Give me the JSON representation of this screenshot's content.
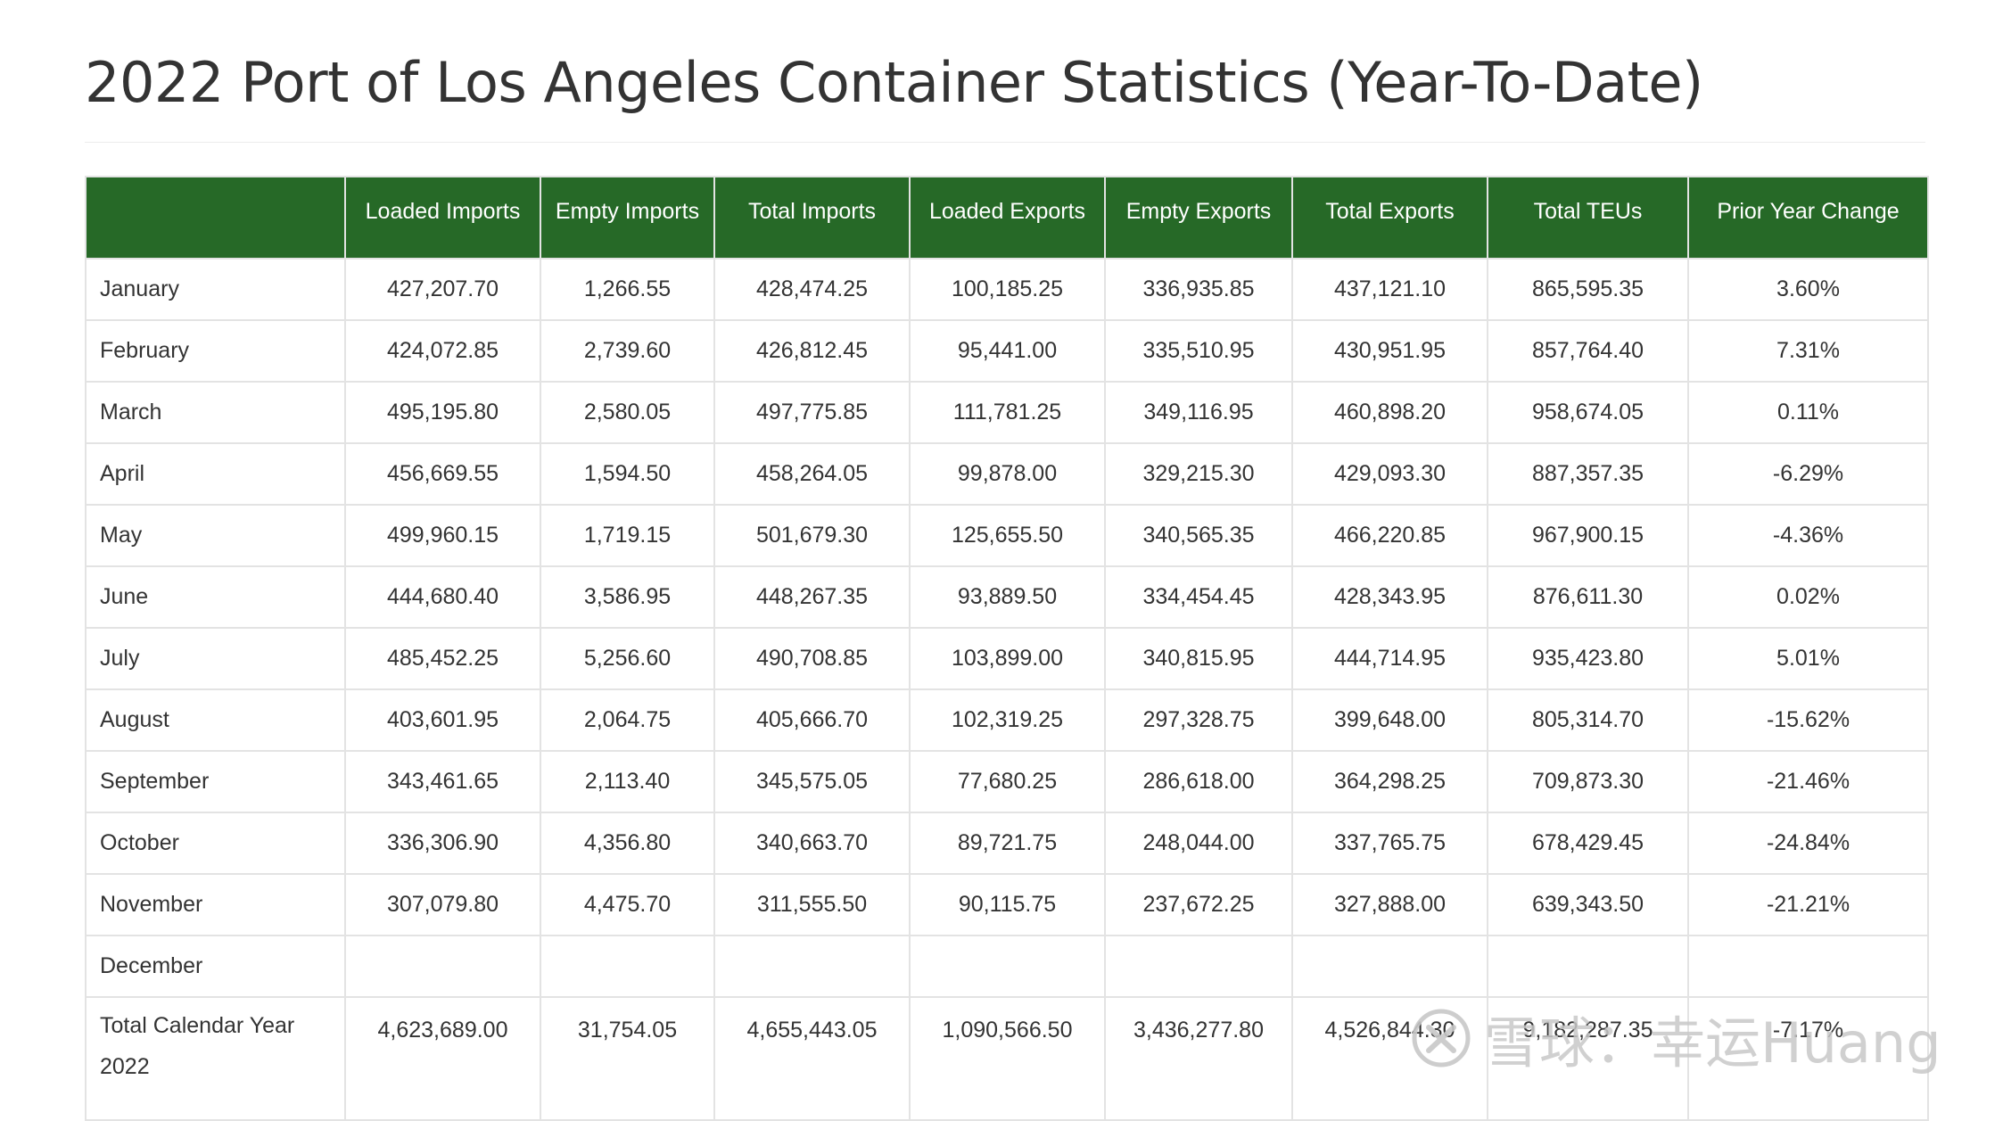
{
  "page": {
    "title": "2022 Port of Los Angeles Container Statistics (Year-To-Date)"
  },
  "table": {
    "headers": [
      "",
      "Loaded Imports",
      "Empty Imports",
      "Total Imports",
      "Loaded Exports",
      "Empty Exports",
      "Total Exports",
      "Total TEUs",
      "Prior Year Change"
    ],
    "rows": [
      [
        "January",
        "427,207.70",
        "1,266.55",
        "428,474.25",
        "100,185.25",
        "336,935.85",
        "437,121.10",
        "865,595.35",
        "3.60%"
      ],
      [
        "February",
        "424,072.85",
        "2,739.60",
        "426,812.45",
        "95,441.00",
        "335,510.95",
        "430,951.95",
        "857,764.40",
        "7.31%"
      ],
      [
        "March",
        "495,195.80",
        "2,580.05",
        "497,775.85",
        "111,781.25",
        "349,116.95",
        "460,898.20",
        "958,674.05",
        "0.11%"
      ],
      [
        "April",
        "456,669.55",
        "1,594.50",
        "458,264.05",
        "99,878.00",
        "329,215.30",
        "429,093.30",
        "887,357.35",
        "-6.29%"
      ],
      [
        "May",
        "499,960.15",
        "1,719.15",
        "501,679.30",
        "125,655.50",
        "340,565.35",
        "466,220.85",
        "967,900.15",
        "-4.36%"
      ],
      [
        "June",
        "444,680.40",
        "3,586.95",
        "448,267.35",
        "93,889.50",
        "334,454.45",
        "428,343.95",
        "876,611.30",
        "0.02%"
      ],
      [
        "July",
        "485,452.25",
        "5,256.60",
        "490,708.85",
        "103,899.00",
        "340,815.95",
        "444,714.95",
        "935,423.80",
        "5.01%"
      ],
      [
        "August",
        "403,601.95",
        "2,064.75",
        "405,666.70",
        "102,319.25",
        "297,328.75",
        "399,648.00",
        "805,314.70",
        "-15.62%"
      ],
      [
        "September",
        "343,461.65",
        "2,113.40",
        "345,575.05",
        "77,680.25",
        "286,618.00",
        "364,298.25",
        "709,873.30",
        "-21.46%"
      ],
      [
        "October",
        "336,306.90",
        "4,356.80",
        "340,663.70",
        "89,721.75",
        "248,044.00",
        "337,765.75",
        "678,429.45",
        "-24.84%"
      ],
      [
        "November",
        "307,079.80",
        "4,475.70",
        "311,555.50",
        "90,115.75",
        "237,672.25",
        "327,888.00",
        "639,343.50",
        "-21.21%"
      ],
      [
        "December",
        "",
        "",
        "",
        "",
        "",
        "",
        "",
        ""
      ],
      [
        "Total Calendar Year 2022",
        "4,623,689.00",
        "31,754.05",
        "4,655,443.05",
        "1,090,566.50",
        "3,436,277.80",
        "4,526,844.30",
        "9,182,287.35",
        "-7.17%"
      ]
    ]
  },
  "watermark": {
    "text": "雪球：幸运Huang",
    "icon": "xueqiu-logo-icon"
  }
}
